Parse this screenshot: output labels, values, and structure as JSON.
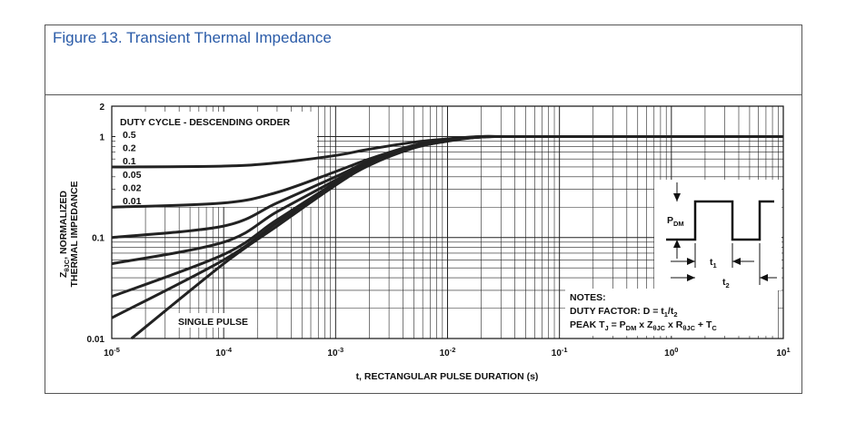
{
  "figure_title": "Figure 13. Transient Thermal Impedance",
  "chart_data": {
    "type": "line",
    "title": "Figure 13. Transient Thermal Impedance",
    "xlabel": "t, RECTANGULAR PULSE DURATION (s)",
    "ylabel_line1": "Z",
    "ylabel_sub": "θJC",
    "ylabel_rest": ", NORMALIZED",
    "ylabel_line2": "THERMAL IMPEDANCE",
    "xscale": "log",
    "yscale": "log",
    "xlim": [
      1e-05,
      10
    ],
    "ylim": [
      0.01,
      2
    ],
    "grid": true,
    "x_tick_labels": [
      {
        "base": "10",
        "exp": "-5"
      },
      {
        "base": "10",
        "exp": "-4"
      },
      {
        "base": "10",
        "exp": "-3"
      },
      {
        "base": "10",
        "exp": "-2"
      },
      {
        "base": "10",
        "exp": "-1"
      },
      {
        "base": "10",
        "exp": "0"
      },
      {
        "base": "10",
        "exp": "1"
      }
    ],
    "y_tick_labels": [
      "0.01",
      "0.1",
      "1",
      "2"
    ],
    "legend_title": "DUTY CYCLE - DESCENDING ORDER",
    "legend_entries": [
      "0.5",
      "0.2",
      "0.1",
      "0.05",
      "0.02",
      "0.01"
    ],
    "single_pulse_label": "SINGLE PULSE",
    "series": [
      {
        "name": "0.5",
        "x": [
          1e-05,
          0.0001,
          0.0003,
          0.001,
          0.002,
          0.005,
          0.01,
          0.02,
          0.05,
          10
        ],
        "y": [
          0.5,
          0.51,
          0.55,
          0.65,
          0.75,
          0.88,
          0.95,
          1.0,
          1.0,
          1.0
        ]
      },
      {
        "name": "0.2",
        "x": [
          1e-05,
          0.0001,
          0.0003,
          0.001,
          0.002,
          0.005,
          0.01,
          0.02,
          0.05,
          10
        ],
        "y": [
          0.2,
          0.22,
          0.28,
          0.45,
          0.6,
          0.82,
          0.93,
          1.0,
          1.0,
          1.0
        ]
      },
      {
        "name": "0.1",
        "x": [
          1e-05,
          0.0001,
          0.0003,
          0.001,
          0.002,
          0.005,
          0.01,
          0.02,
          0.05,
          10
        ],
        "y": [
          0.1,
          0.13,
          0.22,
          0.4,
          0.57,
          0.8,
          0.92,
          0.99,
          1.0,
          1.0
        ]
      },
      {
        "name": "0.05",
        "x": [
          1e-05,
          0.0001,
          0.0003,
          0.001,
          0.002,
          0.005,
          0.01,
          0.02,
          0.05,
          10
        ],
        "y": [
          0.055,
          0.09,
          0.18,
          0.37,
          0.55,
          0.79,
          0.92,
          0.99,
          1.0,
          1.0
        ]
      },
      {
        "name": "0.02",
        "x": [
          1e-05,
          0.0001,
          0.0003,
          0.001,
          0.002,
          0.005,
          0.01,
          0.02,
          0.05,
          10
        ],
        "y": [
          0.026,
          0.068,
          0.15,
          0.35,
          0.54,
          0.78,
          0.91,
          0.99,
          1.0,
          1.0
        ]
      },
      {
        "name": "0.01",
        "x": [
          1e-05,
          0.0001,
          0.0003,
          0.001,
          0.002,
          0.005,
          0.01,
          0.02,
          0.05,
          10
        ],
        "y": [
          0.016,
          0.06,
          0.14,
          0.34,
          0.53,
          0.78,
          0.91,
          0.99,
          1.0,
          1.0
        ]
      },
      {
        "name": "SINGLE PULSE",
        "x": [
          1.5e-05,
          0.0001,
          0.0003,
          0.001,
          0.002,
          0.005,
          0.01,
          0.02,
          0.05,
          10
        ],
        "y": [
          0.01,
          0.055,
          0.13,
          0.33,
          0.52,
          0.77,
          0.9,
          0.99,
          1.0,
          1.0
        ]
      }
    ],
    "notes_title": "NOTES:",
    "notes_line1_prefix": "DUTY FACTOR: D = t",
    "notes_line1_sub1": "1",
    "notes_line1_mid": "/t",
    "notes_line1_sub2": "2",
    "notes_line2": {
      "prefix": "PEAK T",
      "sub1": "J",
      "mid1": " = P",
      "sub2": "DM",
      "mid2": " x Z",
      "sub3": "θJC",
      "mid3": " x R",
      "sub4": "θJC",
      "mid4": " + T",
      "sub5": "C"
    },
    "inset": {
      "pdm_label": "P",
      "pdm_sub": "DM",
      "t1_label": "t",
      "t1_sub": "1",
      "t2_label": "t",
      "t2_sub": "2"
    }
  }
}
